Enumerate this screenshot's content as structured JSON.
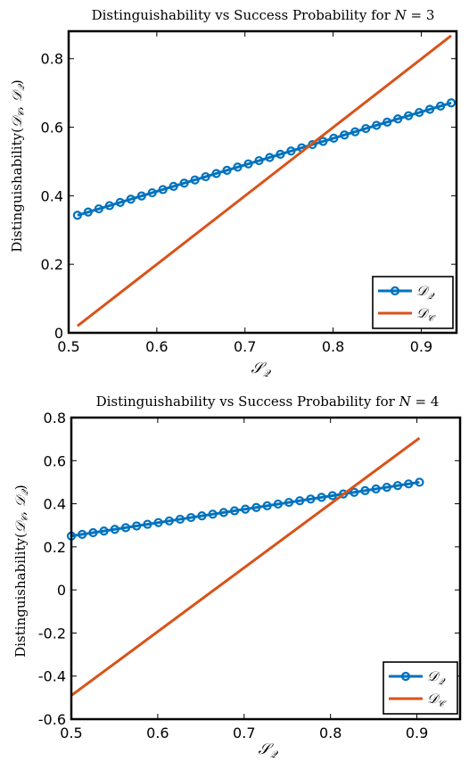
{
  "colors": {
    "quantum": "#0072BD",
    "classical": "#D95319"
  },
  "chart_data": [
    {
      "type": "line",
      "title": "Distinguishability vs Success Probability for N = 3",
      "xlabel": "S_Q",
      "ylabel": "Distinguishability(D_C, D_Q)",
      "xlim": [
        0.5,
        0.94
      ],
      "ylim": [
        0,
        0.88
      ],
      "xticks": [
        0.5,
        0.6,
        0.7,
        0.8,
        0.9
      ],
      "yticks": [
        0,
        0.2,
        0.4,
        0.6,
        0.8
      ],
      "xtick_labels": [
        "0.5",
        "0.6",
        "0.7",
        "0.8",
        "0.9"
      ],
      "ytick_labels": [
        "0",
        "0.2",
        "0.4",
        "0.6",
        "0.8"
      ],
      "legend_position": "bottom-right",
      "series": [
        {
          "name": "D_Q",
          "marker": "circle",
          "color": "#0072BD",
          "x_start": 0.51,
          "x_end": 0.934,
          "y_start": 0.343,
          "y_end": 0.671,
          "points": 36
        },
        {
          "name": "D_C",
          "marker": "none",
          "color": "#D95319",
          "x_start": 0.51,
          "x_end": 0.934,
          "y_start": 0.02,
          "y_end": 0.867
        }
      ]
    },
    {
      "type": "line",
      "title": "Distinguishability vs Success Probability for N = 4",
      "xlabel": "S_Q",
      "ylabel": "Distinguishability(D_C, D_Q)",
      "xlim": [
        0.5,
        0.95
      ],
      "ylim": [
        -0.6,
        0.8
      ],
      "xticks": [
        0.5,
        0.6,
        0.7,
        0.8,
        0.9
      ],
      "yticks": [
        -0.6,
        -0.4,
        -0.2,
        0,
        0.2,
        0.4,
        0.6,
        0.8
      ],
      "xtick_labels": [
        "0.5",
        "0.6",
        "0.7",
        "0.8",
        "0.9"
      ],
      "ytick_labels": [
        "-0.6",
        "-0.4",
        "-0.2",
        "0",
        "0.2",
        "0.4",
        "0.6",
        "0.8"
      ],
      "legend_position": "bottom-right",
      "series": [
        {
          "name": "D_Q",
          "marker": "circle",
          "color": "#0072BD",
          "x_start": 0.5,
          "x_end": 0.903,
          "y_start": 0.25,
          "y_end": 0.5,
          "points": 33
        },
        {
          "name": "D_C",
          "marker": "none",
          "color": "#D95319",
          "x_start": 0.5,
          "x_end": 0.903,
          "y_start": -0.49,
          "y_end": 0.705
        }
      ]
    }
  ]
}
